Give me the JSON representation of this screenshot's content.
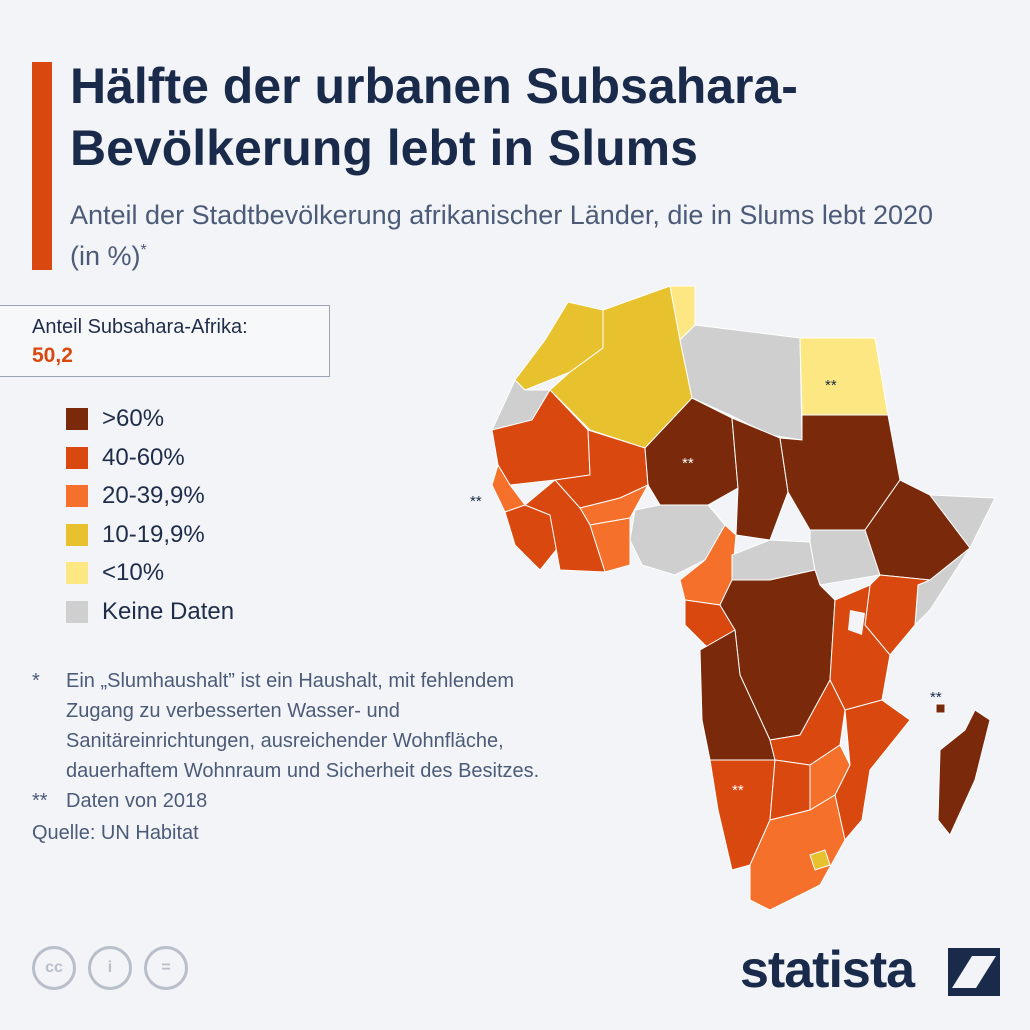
{
  "title": "Hälfte der urbanen Subsahara-Bevölkerung lebt in Slums",
  "subtitle": "Anteil der Stadtbevölkerung afrikanischer Länder, die in Slums lebt 2020 (in %)",
  "subtitle_mark": "*",
  "share": {
    "label": "Anteil Subsahara-Afrika:",
    "value": "50,2"
  },
  "colors": {
    "over60": "#7a2a0a",
    "40to60": "#d9480f",
    "20to39": "#f5702a",
    "10to19": "#e8c12e",
    "under10": "#fde783",
    "nodata": "#cfcfcf",
    "accent": "#d9480f",
    "navy": "#1a2a4a"
  },
  "legend": [
    {
      "label": ">60%",
      "color": "#7a2a0a"
    },
    {
      "label": "40-60%",
      "color": "#d9480f"
    },
    {
      "label": "20-39,9%",
      "color": "#f5702a"
    },
    {
      "label": "10-19,9%",
      "color": "#e8c12e"
    },
    {
      "label": "<10%",
      "color": "#fde783"
    },
    {
      "label": "Keine Daten",
      "color": "#cfcfcf"
    }
  ],
  "notes": [
    {
      "mark": "*",
      "text": "Ein „Slumhaushalt” ist ein Haushalt, mit fehlendem Zugang zu verbesserten Wasser- und Sanitäreinrichtungen, ausreichender Wohnfläche, dauerhaftem Wohnraum und Sicherheit des Besitzes."
    },
    {
      "mark": "**",
      "text": "Daten von 2018"
    }
  ],
  "source": "Quelle: UN Habitat",
  "map_marks": {
    "egypt": "**",
    "niger": "**",
    "west": "**",
    "mauritius": "**",
    "namibia": "**"
  },
  "map_regions": [
    {
      "name": "Morocco",
      "category": "10to19"
    },
    {
      "name": "Algeria",
      "category": "10to19"
    },
    {
      "name": "Tunisia",
      "category": "under10"
    },
    {
      "name": "Libya",
      "category": "nodata"
    },
    {
      "name": "Egypt",
      "category": "under10"
    },
    {
      "name": "Western Sahara",
      "category": "nodata"
    },
    {
      "name": "Mauritania",
      "category": "40to60"
    },
    {
      "name": "Mali",
      "category": "40to60"
    },
    {
      "name": "Niger",
      "category": "over60"
    },
    {
      "name": "Chad",
      "category": "over60"
    },
    {
      "name": "Sudan",
      "category": "over60"
    },
    {
      "name": "Senegal",
      "category": "20to39"
    },
    {
      "name": "Guinea",
      "category": "40to60"
    },
    {
      "name": "Burkina Faso",
      "category": "20to39"
    },
    {
      "name": "Ghana",
      "category": "20to39"
    },
    {
      "name": "Nigeria",
      "category": "nodata"
    },
    {
      "name": "Cameroon",
      "category": "20to39"
    },
    {
      "name": "Central African Republic",
      "category": "nodata"
    },
    {
      "name": "South Sudan",
      "category": "nodata"
    },
    {
      "name": "Ethiopia",
      "category": "over60"
    },
    {
      "name": "Somalia",
      "category": "nodata"
    },
    {
      "name": "Gabon",
      "category": "40to60"
    },
    {
      "name": "DR Congo",
      "category": "over60"
    },
    {
      "name": "Kenya",
      "category": "40to60"
    },
    {
      "name": "Tanzania",
      "category": "40to60"
    },
    {
      "name": "Angola",
      "category": "over60"
    },
    {
      "name": "Zambia",
      "category": "40to60"
    },
    {
      "name": "Mozambique",
      "category": "40to60"
    },
    {
      "name": "Namibia",
      "category": "40to60"
    },
    {
      "name": "Botswana",
      "category": "40to60"
    },
    {
      "name": "Zimbabwe",
      "category": "20to39"
    },
    {
      "name": "South Africa",
      "category": "20to39"
    },
    {
      "name": "Lesotho",
      "category": "10to19"
    },
    {
      "name": "Madagascar",
      "category": "over60"
    },
    {
      "name": "Mauritius",
      "category": "over60"
    }
  ],
  "brand": {
    "name": "statista"
  },
  "license_icons": [
    "cc-icon",
    "by-icon",
    "nd-icon"
  ],
  "license_glyphs": [
    "cc",
    "i",
    "="
  ]
}
